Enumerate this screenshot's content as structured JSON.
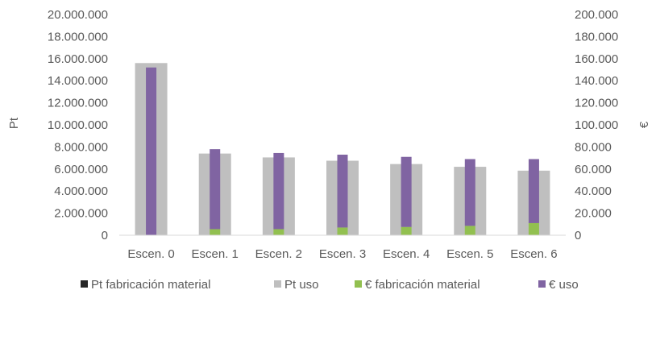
{
  "chart_data": {
    "type": "bar",
    "categories": [
      "Escen. 0",
      "Escen. 1",
      "Escen. 2",
      "Escen. 3",
      "Escen. 4",
      "Escen. 5",
      "Escen. 6"
    ],
    "ylabel": "Pt",
    "y2label": "€",
    "ylim": [
      0,
      20000000
    ],
    "y2lim": [
      0,
      200000
    ],
    "y_ticks": [
      "0",
      "2.000.000",
      "4.000.000",
      "6.000.000",
      "8.000.000",
      "10.000.000",
      "12.000.000",
      "14.000.000",
      "16.000.000",
      "18.000.000",
      "20.000.000"
    ],
    "y2_ticks": [
      "0",
      "20.000",
      "40.000",
      "60.000",
      "80.000",
      "100.000",
      "120.000",
      "140.000",
      "160.000",
      "180.000",
      "200.000"
    ],
    "grid": false,
    "legend_position": "bottom",
    "series": [
      {
        "name": "Pt fabricación material",
        "axis": "left",
        "stack": "pt",
        "color": "#262626",
        "values": [
          0,
          0,
          0,
          0,
          0,
          0,
          0
        ]
      },
      {
        "name": "Pt uso",
        "axis": "left",
        "stack": "pt",
        "color": "#bfbfbf",
        "values": [
          15600000,
          7400000,
          7050000,
          6750000,
          6450000,
          6200000,
          5850000
        ]
      },
      {
        "name": "€ fabricación material",
        "axis": "right",
        "stack": "eur",
        "color": "#92c050",
        "values": [
          0,
          5500,
          5500,
          7000,
          7500,
          8500,
          11000
        ]
      },
      {
        "name": "€ uso",
        "axis": "right",
        "stack": "eur",
        "color": "#8064a2",
        "values": [
          152000,
          72500,
          69000,
          66000,
          63500,
          60500,
          58000
        ]
      }
    ]
  }
}
